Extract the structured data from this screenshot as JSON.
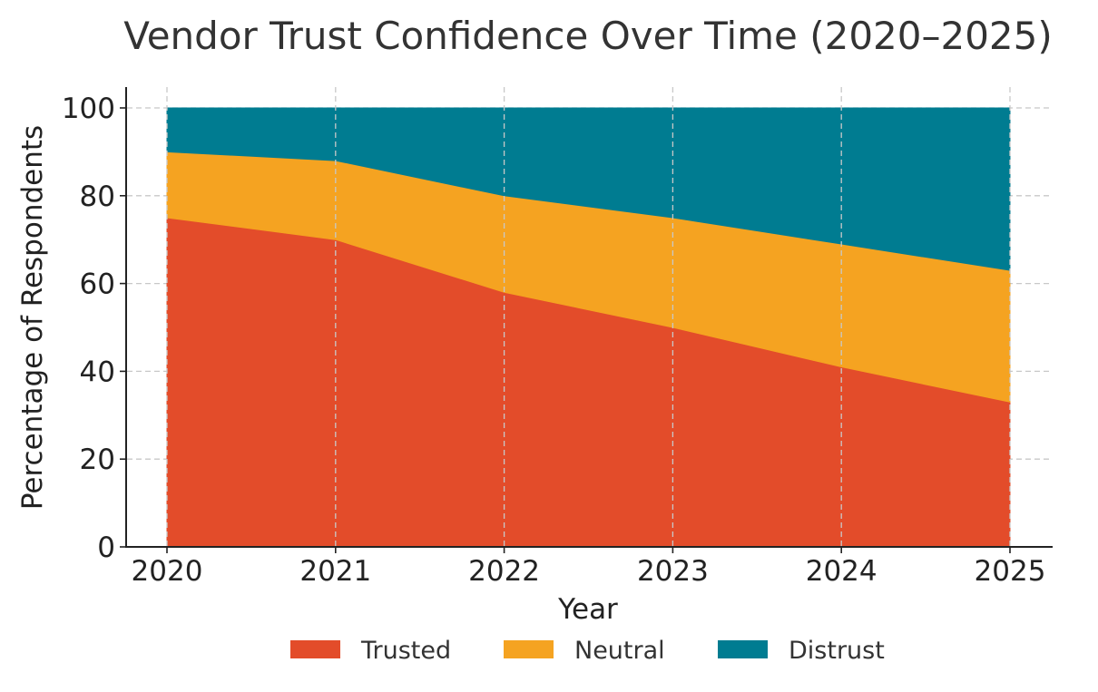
{
  "chart_data": {
    "type": "area",
    "stacked": true,
    "title": "Vendor Trust Confidence Over Time (2020–2025)",
    "xlabel": "Year",
    "ylabel": "Percentage of Respondents",
    "x": [
      "2020",
      "2021",
      "2022",
      "2023",
      "2024",
      "2025"
    ],
    "series": [
      {
        "name": "Trusted",
        "values": [
          75,
          70,
          58,
          50,
          41,
          33
        ],
        "color": "#E34C2A"
      },
      {
        "name": "Neutral",
        "values": [
          15,
          18,
          22,
          25,
          28,
          30
        ],
        "color": "#F5A321"
      },
      {
        "name": "Distrust",
        "values": [
          10,
          12,
          20,
          25,
          31,
          37
        ],
        "color": "#007C91"
      }
    ],
    "ylim": [
      0,
      105
    ],
    "yticks": [
      "0",
      "20",
      "40",
      "60",
      "80",
      "100"
    ],
    "grid": true,
    "legend_position": "bottom-center"
  }
}
